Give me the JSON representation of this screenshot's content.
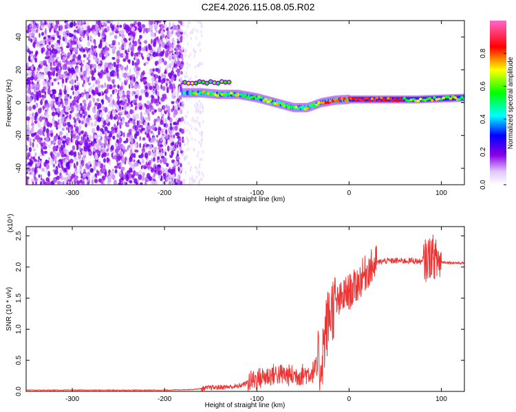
{
  "title": "C2E4.2026.115.08.05.R02",
  "chart_data": [
    {
      "type": "heatmap",
      "xlabel": "Height of straight line (km)",
      "ylabel": "Frequency (Hz)",
      "colorbar_label": "Normalized spectral amplitude",
      "xlim": [
        -350,
        125
      ],
      "ylim": [
        -50,
        50
      ],
      "x_ticks": [
        -300,
        -200,
        -100,
        0,
        100
      ],
      "y_ticks": [
        -40,
        -20,
        0,
        20,
        40
      ],
      "colorbar_ticks": [
        0.0,
        0.2,
        0.4,
        0.6,
        0.8
      ],
      "colorbar_range": [
        0,
        1
      ],
      "colormap": [
        "#ffffff",
        "#8a00e6",
        "#0000ff",
        "#00ffff",
        "#00ff00",
        "#ffff00",
        "#ff0000",
        "#ff66cc"
      ],
      "noise_region_x": [
        -350,
        -180
      ],
      "ridge": [
        {
          "x": -180,
          "f": 6
        },
        {
          "x": -160,
          "f": 6
        },
        {
          "x": -140,
          "f": 5
        },
        {
          "x": -120,
          "f": 5
        },
        {
          "x": -100,
          "f": 3
        },
        {
          "x": -80,
          "f": 0
        },
        {
          "x": -60,
          "f": -3
        },
        {
          "x": -45,
          "f": -3
        },
        {
          "x": -30,
          "f": 0
        },
        {
          "x": -15,
          "f": 1.5
        },
        {
          "x": 0,
          "f": 2
        },
        {
          "x": 25,
          "f": 2
        },
        {
          "x": 50,
          "f": 2
        },
        {
          "x": 75,
          "f": 2
        },
        {
          "x": 100,
          "f": 2.5
        },
        {
          "x": 125,
          "f": 3
        }
      ]
    },
    {
      "type": "line",
      "xlabel": "Height of straight line (km)",
      "ylabel": "SNR (10 * v/v)",
      "y_multiplier": "(x10⁴)",
      "xlim": [
        -350,
        125
      ],
      "ylim": [
        0,
        2.65
      ],
      "x_ticks": [
        -300,
        -200,
        -100,
        0,
        100
      ],
      "y_ticks": [
        0.0,
        0.5,
        1.0,
        1.5,
        2.0,
        2.5
      ],
      "series": [
        {
          "color": "#ee3333",
          "x": [
            -350,
            -300,
            -250,
            -200,
            -170,
            -150,
            -120,
            -100,
            -80,
            -60,
            -40,
            -30,
            -25,
            -20,
            -15,
            -10,
            -5,
            0,
            5,
            10,
            15,
            20,
            25,
            30,
            40,
            50,
            60,
            70,
            80,
            85,
            90,
            95,
            100,
            110,
            125
          ],
          "y": [
            0.02,
            0.02,
            0.02,
            0.02,
            0.03,
            0.06,
            0.08,
            0.2,
            0.28,
            0.25,
            0.3,
            0.5,
            1.0,
            1.3,
            1.4,
            1.45,
            1.55,
            1.6,
            1.65,
            1.75,
            1.85,
            1.95,
            2.0,
            2.07,
            2.1,
            2.1,
            2.1,
            2.1,
            2.08,
            2.12,
            2.2,
            2.1,
            2.08,
            2.07,
            2.06
          ]
        }
      ]
    }
  ]
}
